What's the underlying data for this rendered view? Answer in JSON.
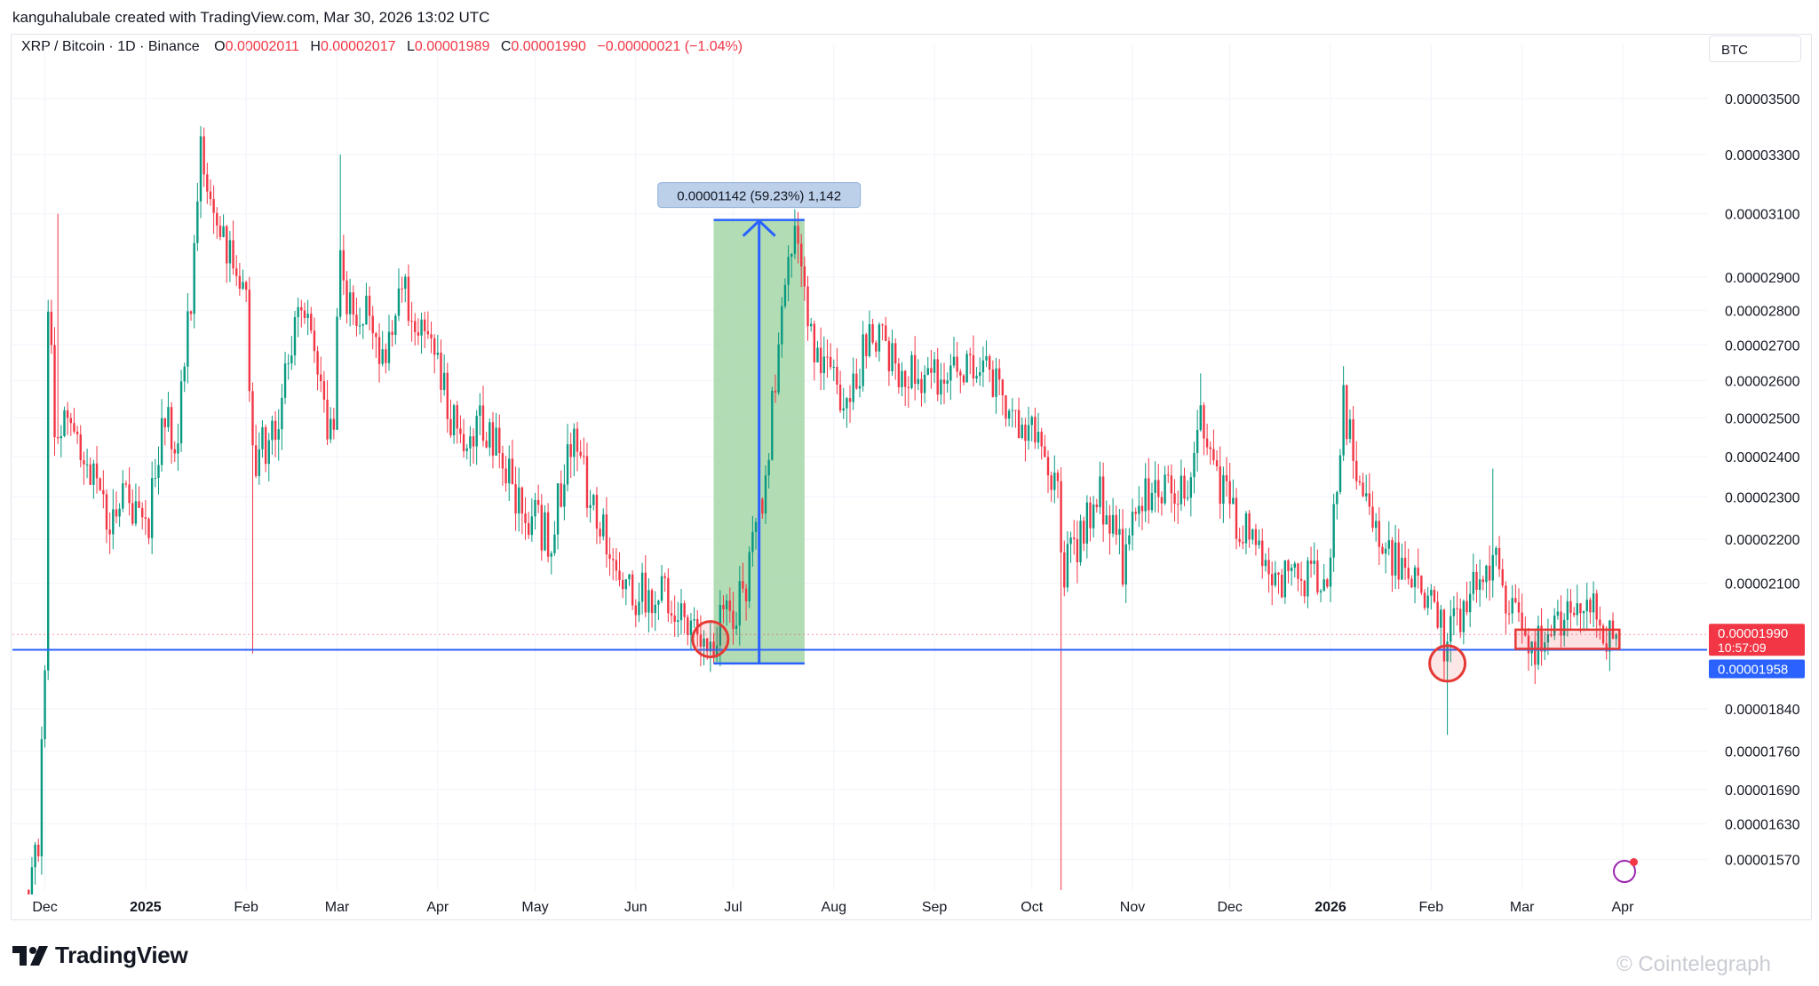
{
  "header": {
    "credit": "kanguhalubale created with TradingView.com, Mar 30, 2026 13:02 UTC"
  },
  "legend": {
    "symbol": "XRP / Bitcoin · 1D · Binance",
    "o_label": "O",
    "o_value": "0.00002011",
    "h_label": "H",
    "h_value": "0.00002017",
    "l_label": "L",
    "l_value": "0.00001989",
    "c_label": "C",
    "c_value": "0.00001990",
    "change": "−0.00000021 (−1.04%)"
  },
  "currency_button": "BTC",
  "logo_text": "TradingView",
  "watermark": "© Cointelegraph",
  "colors": {
    "up": "#089981",
    "down": "#f23645",
    "support_line": "#2962ff",
    "measure_fill": "#a5d6a7",
    "annotation_circle": "#e53935",
    "current_price_tag": "#f23645",
    "support_price_tag": "#2962ff"
  },
  "chart_data": {
    "type": "candlestick",
    "scale": "log",
    "ylim": [
      1.52e-05,
      3.61e-05
    ],
    "y_ticks": [
      "0.00003500",
      "0.00003300",
      "0.00003100",
      "0.00002900",
      "0.00002800",
      "0.00002700",
      "0.00002600",
      "0.00002500",
      "0.00002400",
      "0.00002300",
      "0.00002200",
      "0.00002100",
      "0.00001840",
      "0.00001760",
      "0.00001690",
      "0.00001630",
      "0.00001570"
    ],
    "x_range": [
      "2024-11-21",
      "2026-04-27"
    ],
    "x_ticks": [
      {
        "label": "Dec",
        "date": "2024-12-01",
        "bold": false
      },
      {
        "label": "2025",
        "date": "2025-01-01",
        "bold": true
      },
      {
        "label": "Feb",
        "date": "2025-02-01",
        "bold": false
      },
      {
        "label": "Mar",
        "date": "2025-03-01",
        "bold": false
      },
      {
        "label": "Apr",
        "date": "2025-04-01",
        "bold": false
      },
      {
        "label": "May",
        "date": "2025-05-01",
        "bold": false
      },
      {
        "label": "Jun",
        "date": "2025-06-01",
        "bold": false
      },
      {
        "label": "Jul",
        "date": "2025-07-01",
        "bold": false
      },
      {
        "label": "Aug",
        "date": "2025-08-01",
        "bold": false
      },
      {
        "label": "Sep",
        "date": "2025-09-01",
        "bold": false
      },
      {
        "label": "Oct",
        "date": "2025-10-01",
        "bold": false
      },
      {
        "label": "Nov",
        "date": "2025-11-01",
        "bold": false
      },
      {
        "label": "Dec",
        "date": "2025-12-01",
        "bold": false
      },
      {
        "label": "2026",
        "date": "2026-01-01",
        "bold": true
      },
      {
        "label": "Feb",
        "date": "2026-02-01",
        "bold": false
      },
      {
        "label": "Mar",
        "date": "2026-03-01",
        "bold": false
      },
      {
        "label": "Apr",
        "date": "2026-04-01",
        "bold": false
      }
    ],
    "close_anchors": [
      [
        "2024-11-26",
        1.52e-05
      ],
      [
        "2024-11-29",
        1.59e-05
      ],
      [
        "2024-12-01",
        1.95e-05
      ],
      [
        "2024-12-02",
        2.85e-05
      ],
      [
        "2024-12-04",
        2.5e-05
      ],
      [
        "2024-12-08",
        2.45e-05
      ],
      [
        "2024-12-15",
        2.35e-05
      ],
      [
        "2024-12-21",
        2.25e-05
      ],
      [
        "2024-12-26",
        2.3e-05
      ],
      [
        "2025-01-01",
        2.2e-05
      ],
      [
        "2025-01-06",
        2.5e-05
      ],
      [
        "2025-01-11",
        2.45e-05
      ],
      [
        "2025-01-16",
        2.95e-05
      ],
      [
        "2025-01-18",
        3.3e-05
      ],
      [
        "2025-01-22",
        3.05e-05
      ],
      [
        "2025-01-27",
        2.95e-05
      ],
      [
        "2025-02-01",
        2.8e-05
      ],
      [
        "2025-02-03",
        2.4e-05
      ],
      [
        "2025-02-10",
        2.45e-05
      ],
      [
        "2025-02-18",
        2.85e-05
      ],
      [
        "2025-02-24",
        2.55e-05
      ],
      [
        "2025-02-28",
        2.45e-05
      ],
      [
        "2025-03-02",
        3.05e-05
      ],
      [
        "2025-03-04",
        2.85e-05
      ],
      [
        "2025-03-10",
        2.8e-05
      ],
      [
        "2025-03-16",
        2.6e-05
      ],
      [
        "2025-03-20",
        2.9e-05
      ],
      [
        "2025-03-30",
        2.7e-05
      ],
      [
        "2025-04-07",
        2.45e-05
      ],
      [
        "2025-04-15",
        2.5e-05
      ],
      [
        "2025-04-25",
        2.3e-05
      ],
      [
        "2025-05-06",
        2.2e-05
      ],
      [
        "2025-05-12",
        2.45e-05
      ],
      [
        "2025-05-20",
        2.25e-05
      ],
      [
        "2025-05-31",
        2.08e-05
      ],
      [
        "2025-06-08",
        2.08e-05
      ],
      [
        "2025-06-16",
        2.05e-05
      ],
      [
        "2025-06-22",
        1.97e-05
      ],
      [
        "2025-06-30",
        2.03e-05
      ],
      [
        "2025-07-05",
        2.1e-05
      ],
      [
        "2025-07-10",
        2.3e-05
      ],
      [
        "2025-07-14",
        2.6e-05
      ],
      [
        "2025-07-18",
        2.95e-05
      ],
      [
        "2025-07-21",
        3.05e-05
      ],
      [
        "2025-07-24",
        2.75e-05
      ],
      [
        "2025-08-01",
        2.6e-05
      ],
      [
        "2025-08-06",
        2.55e-05
      ],
      [
        "2025-08-12",
        2.75e-05
      ],
      [
        "2025-08-20",
        2.65e-05
      ],
      [
        "2025-08-28",
        2.62e-05
      ],
      [
        "2025-09-06",
        2.6e-05
      ],
      [
        "2025-09-14",
        2.65e-05
      ],
      [
        "2025-09-22",
        2.55e-05
      ],
      [
        "2025-09-28",
        2.5e-05
      ],
      [
        "2025-10-05",
        2.4e-05
      ],
      [
        "2025-10-09",
        2.3e-05
      ],
      [
        "2025-10-11",
        2.13e-05
      ],
      [
        "2025-10-15",
        2.2e-05
      ],
      [
        "2025-10-22",
        2.3e-05
      ],
      [
        "2025-10-29",
        2.15e-05
      ],
      [
        "2025-11-05",
        2.3e-05
      ],
      [
        "2025-11-12",
        2.35e-05
      ],
      [
        "2025-11-19",
        2.3e-05
      ],
      [
        "2025-11-22",
        2.55e-05
      ],
      [
        "2025-11-25",
        2.4e-05
      ],
      [
        "2025-12-01",
        2.28e-05
      ],
      [
        "2025-12-08",
        2.2e-05
      ],
      [
        "2025-12-15",
        2.12e-05
      ],
      [
        "2025-12-22",
        2.1e-05
      ],
      [
        "2026-01-01",
        2.15e-05
      ],
      [
        "2026-01-05",
        2.55e-05
      ],
      [
        "2026-01-09",
        2.35e-05
      ],
      [
        "2026-01-14",
        2.25e-05
      ],
      [
        "2026-01-20",
        2.15e-05
      ],
      [
        "2026-01-28",
        2.1e-05
      ],
      [
        "2026-02-02",
        2.05e-05
      ],
      [
        "2026-02-06",
        1.96e-05
      ],
      [
        "2026-02-10",
        2.04e-05
      ],
      [
        "2026-02-16",
        2.1e-05
      ],
      [
        "2026-02-20",
        2.15e-05
      ],
      [
        "2026-02-26",
        2.05e-05
      ],
      [
        "2026-03-03",
        1.98e-05
      ],
      [
        "2026-03-08",
        1.97e-05
      ],
      [
        "2026-03-13",
        2e-05
      ],
      [
        "2026-03-18",
        2.07e-05
      ],
      [
        "2026-03-24",
        2.03e-05
      ],
      [
        "2026-03-27",
        1.98e-05
      ],
      [
        "2026-03-30",
        1.99e-05
      ]
    ],
    "wick_spikes": [
      {
        "date": "2024-12-05",
        "high": 3.1e-05
      },
      {
        "date": "2025-01-18",
        "high": 3.4e-05
      },
      {
        "date": "2025-02-03",
        "low": 1.95e-05
      },
      {
        "date": "2025-03-02",
        "high": 3.3e-05
      },
      {
        "date": "2025-10-10",
        "low": 1.52e-05
      },
      {
        "date": "2025-11-22",
        "high": 2.62e-05
      },
      {
        "date": "2026-01-05",
        "high": 2.62e-05
      },
      {
        "date": "2026-02-06",
        "low": 1.79e-05
      },
      {
        "date": "2026-02-20",
        "high": 2.37e-05
      }
    ],
    "support_level": 1.958e-05,
    "support_label": "0.00001958",
    "current_price": 1.99e-05,
    "current_price_label": "0.00001990",
    "countdown": "10:57:09",
    "measure": {
      "start_date": "2025-06-25",
      "end_date": "2025-07-23",
      "low": 1.93e-05,
      "high": 3.08e-05,
      "label": "0.00001142 (59.23%) 1,142"
    },
    "circles": [
      {
        "date": "2025-06-24",
        "value": 1.98e-05
      },
      {
        "date": "2026-02-06",
        "value": 1.93e-05
      }
    ],
    "range_box": {
      "start_date": "2026-02-27",
      "end_date": "2026-03-31",
      "low": 1.96e-05,
      "high": 2e-05
    }
  }
}
